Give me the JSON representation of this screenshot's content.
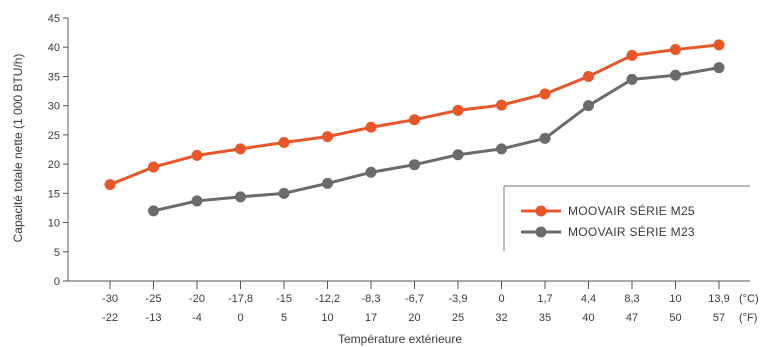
{
  "chart_data": {
    "type": "line",
    "x": [
      "-30",
      "-25",
      "-20",
      "-17,8",
      "-15",
      "-12,2",
      "-8,3",
      "-6,7",
      "-3,9",
      "0",
      "1,7",
      "4,4",
      "8,3",
      "10",
      "13,9"
    ],
    "x_secondary": [
      "-22",
      "-13",
      "-4",
      "0",
      "5",
      "10",
      "17",
      "20",
      "25",
      "32",
      "35",
      "40",
      "47",
      "50",
      "57"
    ],
    "x_unit_primary": "(°C)",
    "x_unit_secondary": "(°F)",
    "series": [
      {
        "name": "MOOVAIR SÉRIE M25",
        "color": "#e8572a",
        "values": [
          16.5,
          19.5,
          21.5,
          22.6,
          23.7,
          24.7,
          26.3,
          27.6,
          29.2,
          30.1,
          32.0,
          35.0,
          38.6,
          39.6,
          40.4
        ]
      },
      {
        "name": "MOOVAIR SÉRIE M23",
        "color": "#6b6b6b",
        "values": [
          null,
          12.0,
          13.7,
          14.4,
          15.0,
          16.7,
          18.6,
          19.9,
          21.6,
          22.6,
          24.4,
          30.0,
          34.5,
          35.2,
          36.5
        ]
      }
    ],
    "yticks": [
      "0",
      "5",
      "10",
      "15",
      "20",
      "25",
      "30",
      "35",
      "40",
      "45"
    ],
    "ylim": [
      0,
      45
    ],
    "xlabel": "Température extérieure",
    "ylabel": "Capacité totale nette  (1 000 BTU/h)",
    "legend_position": "bottom-right",
    "grid": false
  }
}
